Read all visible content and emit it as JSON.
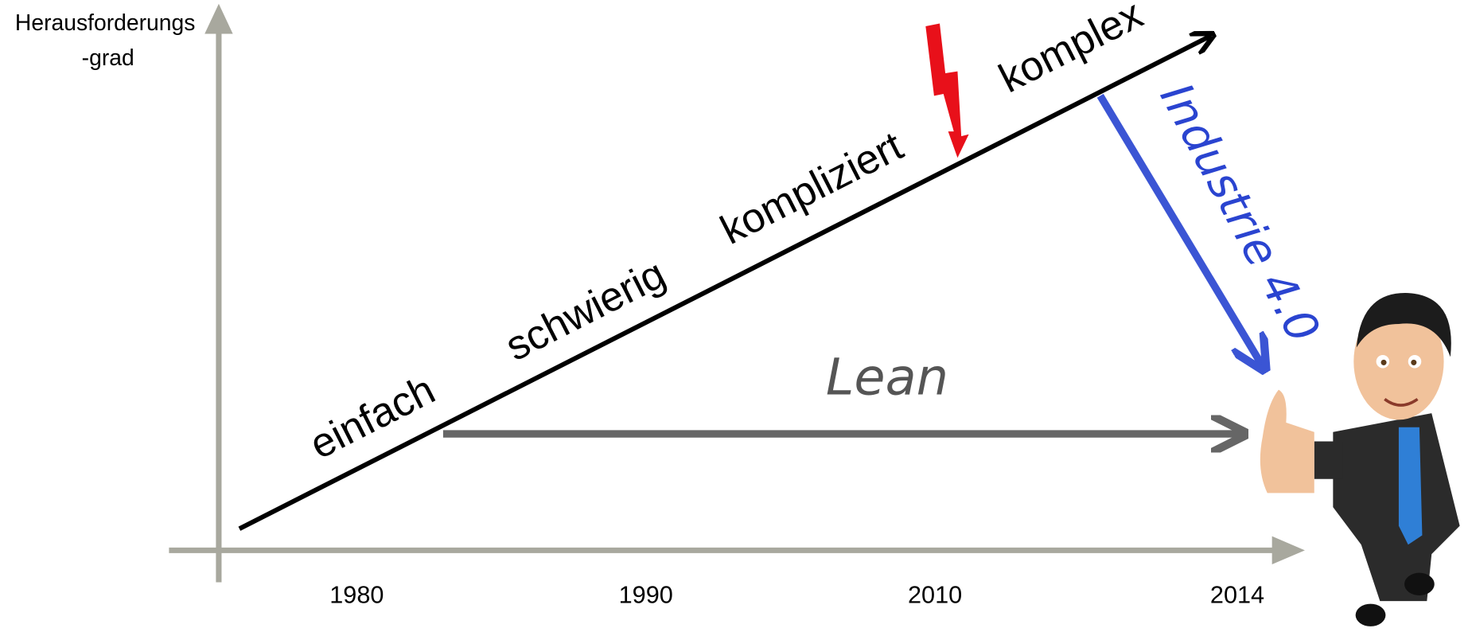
{
  "axis": {
    "y_label": [
      "Herausforderungs",
      "-grad"
    ],
    "x_labels": [
      "1980",
      "1990",
      "2010",
      "2014"
    ]
  },
  "stages": [
    "einfach",
    "schwierig",
    "kompliziert",
    "komplex"
  ],
  "arrows": {
    "lean": "Lean",
    "digital": "Industrie 4.0"
  }
}
